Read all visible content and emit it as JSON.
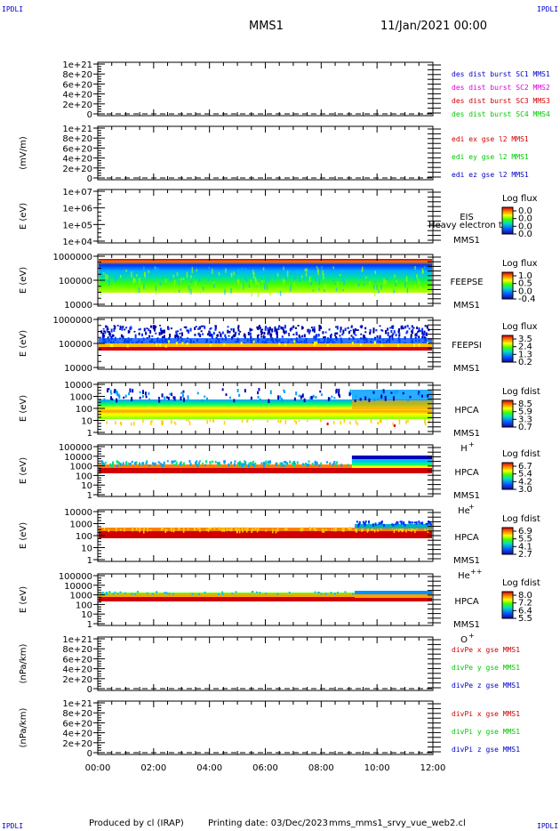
{
  "corners": {
    "top_left": "IPDLI",
    "top_right": "IPDLI",
    "bottom_left": "IPDLI",
    "bottom_right": "IPDLI"
  },
  "header": {
    "mission": "MMS1",
    "date": "11/Jan/2021 00:00"
  },
  "footer": {
    "produced_by": "Produced by cl (IRAP)",
    "printing_date": "Printing date: 03/Dec/2023",
    "file": "mms_mms1_srvy_vue_web2.cl"
  },
  "chart_data": {
    "type": "heatmap",
    "x_ticks": [
      "00:00",
      "02:00",
      "04:00",
      "06:00",
      "08:00",
      "10:00",
      "12:00"
    ],
    "x_range_hours": [
      0,
      12
    ],
    "panels": [
      {
        "id": "des",
        "type": "line",
        "ylabel": "",
        "yticks": [
          "1e+21",
          "8e+20",
          "6e+20",
          "4e+20",
          "2e+20",
          "0"
        ],
        "legend": [
          {
            "text": "des dist burst SC1 MMS1",
            "color": "#0000c8"
          },
          {
            "text": "des dist burst SC2 MMS2",
            "color": "#e000e0"
          },
          {
            "text": "des dist burst SC3 MMS3",
            "color": "#d00000"
          },
          {
            "text": "des dist burst SC4 MMS4",
            "color": "#00c800"
          }
        ]
      },
      {
        "id": "edi",
        "type": "line",
        "ylabel": "(mV/m)",
        "yticks": [
          "1e+21",
          "8e+20",
          "6e+20",
          "4e+20",
          "2e+20",
          "0"
        ],
        "legend": [
          {
            "text": "edi ex gse l2 MMS1",
            "color": "#d00000"
          },
          {
            "text": "edi ey gse l2 MMS1",
            "color": "#00c800"
          },
          {
            "text": "edi ez gse l2 MMS1",
            "color": "#0000c8"
          }
        ]
      },
      {
        "id": "eis",
        "type": "heatmap",
        "ylabel": "E (eV)",
        "yticks": [
          "1e+07",
          "1e+06",
          "1e+05",
          "1e+04"
        ],
        "instrument": "EIS",
        "overlay": "Heavy electron to",
        "spacecraft": "MMS1",
        "cbar_title": "Log flux",
        "cbar_ticks": [
          "0.0",
          "0.0",
          "0.0",
          "0.0"
        ]
      },
      {
        "id": "feepse",
        "type": "heatmap",
        "ylabel": "E (eV)",
        "yticks": [
          "1000000",
          "100000",
          "10000"
        ],
        "instrument": "FEEPSE",
        "spacecraft": "MMS1",
        "cbar_title": "Log flux",
        "cbar_ticks": [
          "1.0",
          "0.5",
          "0.0",
          "-0.4"
        ]
      },
      {
        "id": "feepsi",
        "type": "heatmap",
        "ylabel": "E (eV)",
        "yticks": [
          "1000000",
          "100000",
          "10000"
        ],
        "instrument": "FEEPSI",
        "spacecraft": "MMS1",
        "cbar_title": "Log flux",
        "cbar_ticks": [
          "3.5",
          "2.4",
          "1.3",
          "0.2"
        ]
      },
      {
        "id": "hpca_h",
        "type": "heatmap",
        "ylabel": "E (eV)",
        "yticks": [
          "10000",
          "1000",
          "100",
          "10",
          "1"
        ],
        "instrument": "HPCA",
        "spacecraft": "MMS1",
        "species": "H",
        "charge": "+",
        "cbar_title": "Log fdist",
        "cbar_ticks": [
          "8.5",
          "5.9",
          "3.3",
          "0.7"
        ]
      },
      {
        "id": "hpca_he",
        "type": "heatmap",
        "ylabel": "E (eV)",
        "yticks": [
          "100000",
          "10000",
          "1000",
          "100",
          "10",
          "1"
        ],
        "instrument": "HPCA",
        "spacecraft": "MMS1",
        "species": "He",
        "charge": "+",
        "cbar_title": "Log fdist",
        "cbar_ticks": [
          "6.7",
          "5.4",
          "4.2",
          "3.0"
        ]
      },
      {
        "id": "hpca_hepp",
        "type": "heatmap",
        "ylabel": "E (eV)",
        "yticks": [
          "10000",
          "1000",
          "100",
          "10",
          "1"
        ],
        "instrument": "HPCA",
        "spacecraft": "MMS1",
        "species": "He",
        "charge": "++",
        "cbar_title": "Log fdist",
        "cbar_ticks": [
          "6.9",
          "5.5",
          "4.1",
          "2.7"
        ]
      },
      {
        "id": "hpca_o",
        "type": "heatmap",
        "ylabel": "E (eV)",
        "yticks": [
          "100000",
          "10000",
          "1000",
          "100",
          "10",
          "1"
        ],
        "instrument": "HPCA",
        "spacecraft": "MMS1",
        "species": "O",
        "charge": "+",
        "cbar_title": "Log fdist",
        "cbar_ticks": [
          "8.0",
          "7.2",
          "6.4",
          "5.5"
        ]
      },
      {
        "id": "divpe",
        "type": "line",
        "ylabel": "(nPa/km)",
        "yticks": [
          "1e+21",
          "8e+20",
          "6e+20",
          "4e+20",
          "2e+20",
          "0"
        ],
        "legend": [
          {
            "text": "divPe x gse MMS1",
            "color": "#d00000"
          },
          {
            "text": "divPe y gse MMS1",
            "color": "#00c800"
          },
          {
            "text": "divPe z gse MMS1",
            "color": "#0000c8"
          }
        ]
      },
      {
        "id": "divpi",
        "type": "line",
        "ylabel": "(nPa/km)",
        "yticks": [
          "1e+21",
          "8e+20",
          "6e+20",
          "4e+20",
          "2e+20",
          "0"
        ],
        "legend": [
          {
            "text": "divPi x gse MMS1",
            "color": "#d00000"
          },
          {
            "text": "divPi y gse MMS1",
            "color": "#00c800"
          },
          {
            "text": "divPi z gse MMS1",
            "color": "#0000c8"
          }
        ]
      }
    ]
  }
}
